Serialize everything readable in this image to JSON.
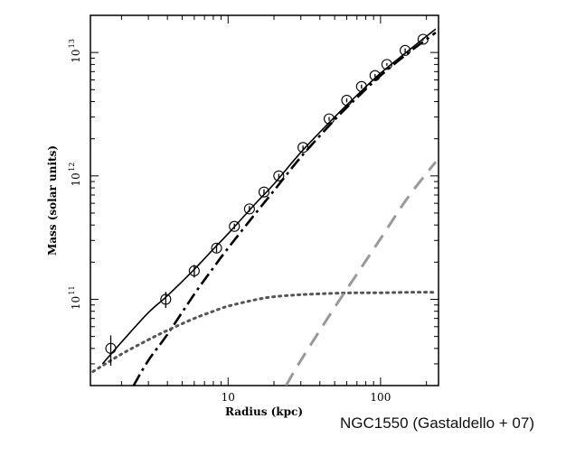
{
  "caption": "NGC1550 (Gastaldello + 07)",
  "chart_data": {
    "type": "line",
    "title": "",
    "xlabel": "Radius (kpc)",
    "ylabel": "Mass (solar units)",
    "xscale": "log",
    "yscale": "log",
    "xlim": [
      1.25,
      240
    ],
    "ylim": [
      20000000000.0,
      20000000000000.0
    ],
    "x_ticks": [
      {
        "value": 10,
        "label": "10"
      },
      {
        "value": 100,
        "label": "100"
      }
    ],
    "y_ticks": [
      {
        "value": 100000000000.0,
        "base": "10",
        "exp": "11"
      },
      {
        "value": 1000000000000.0,
        "base": "10",
        "exp": "12"
      },
      {
        "value": 10000000000000.0,
        "base": "10",
        "exp": "13"
      }
    ],
    "grid": false,
    "legend": "none",
    "data_points": {
      "marker": "open-circle",
      "x": [
        1.7,
        3.9,
        6.0,
        8.4,
        11.0,
        13.8,
        17.2,
        21.5,
        31.0,
        46.0,
        60.0,
        75.0,
        92.0,
        110.0,
        145.0,
        190.0
      ],
      "y": [
        40000000000.0,
        100000000000.0,
        170000000000.0,
        260000000000.0,
        390000000000.0,
        540000000000.0,
        740000000000.0,
        1000000000000.0,
        1700000000000.0,
        2900000000000.0,
        4100000000000.0,
        5300000000000.0,
        6500000000000.0,
        8000000000000.0,
        10400000000000.0,
        12800000000000.0
      ],
      "y_err_lo": [
        29000000000.0,
        85000000000.0,
        150000000000.0,
        240000000000.0,
        370000000000.0,
        510000000000.0,
        700000000000.0,
        960000000000.0,
        1640000000000.0,
        2800000000000.0,
        3950000000000.0,
        5100000000000.0,
        6300000000000.0,
        7800000000000.0,
        10000000000000.0,
        12500000000000.0
      ],
      "y_err_hi": [
        51000000000.0,
        115000000000.0,
        190000000000.0,
        280000000000.0,
        410000000000.0,
        570000000000.0,
        780000000000.0,
        1040000000000.0,
        1760000000000.0,
        3000000000000.0,
        4250000000000.0,
        5500000000000.0,
        6700000000000.0,
        8200000000000.0,
        10800000000000.0,
        13100000000000.0
      ]
    },
    "series": [
      {
        "style": "solid",
        "color": "#000000",
        "x": [
          1.5,
          2.0,
          3.0,
          4.0,
          6.0,
          8.0,
          10.0,
          15.0,
          20.0,
          30.0,
          50.0,
          70.0,
          100.0,
          150.0,
          230.0
        ],
        "y": [
          30000000000.0,
          45000000000.0,
          78000000000.0,
          107000000000.0,
          175000000000.0,
          255000000000.0,
          340000000000.0,
          590000000000.0,
          860000000000.0,
          1550000000000.0,
          3000000000000.0,
          4500000000000.0,
          6800000000000.0,
          10200000000000.0,
          15500000000000.0
        ]
      },
      {
        "style": "dash-dot",
        "color": "#000000",
        "x": [
          2.4,
          3.0,
          4.0,
          6.0,
          8.0,
          10.0,
          15.0,
          20.0,
          30.0,
          50.0,
          70.0,
          100.0,
          150.0,
          230.0
        ],
        "y": [
          20000000000.0,
          32000000000.0,
          52000000000.0,
          110000000000.0,
          180000000000.0,
          260000000000.0,
          490000000000.0,
          760000000000.0,
          1420000000000.0,
          2850000000000.0,
          4300000000000.0,
          6500000000000.0,
          9800000000000.0,
          14500000000000.0
        ]
      },
      {
        "style": "dotted",
        "color": "#555555",
        "x": [
          1.3,
          2.0,
          3.0,
          4.0,
          6.0,
          8.0,
          10.0,
          15.0,
          20.0,
          30.0,
          50.0,
          70.0,
          100.0,
          150.0,
          230.0
        ],
        "y": [
          26000000000.0,
          36000000000.0,
          47000000000.0,
          56000000000.0,
          70000000000.0,
          80000000000.0,
          88000000000.0,
          99000000000.0,
          105000000000.0,
          109000000000.0,
          112000000000.0,
          113000000000.0,
          113000000000.0,
          114000000000.0,
          114000000000.0
        ]
      },
      {
        "style": "dashed",
        "color": "#999999",
        "x": [
          24.0,
          30.0,
          50.0,
          70.0,
          100.0,
          150.0,
          230.0
        ],
        "y": [
          20000000000.0,
          32000000000.0,
          86000000000.0,
          160000000000.0,
          310000000000.0,
          660000000000.0,
          1300000000000.0
        ]
      }
    ]
  }
}
